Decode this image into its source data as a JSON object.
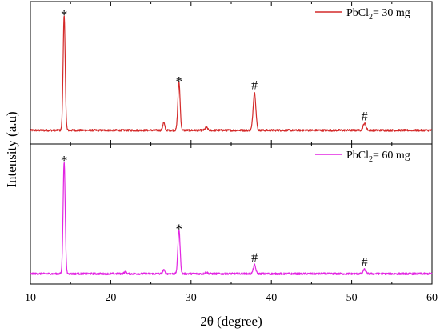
{
  "chart_data": {
    "type": "line",
    "xlabel": "2θ (degree)",
    "ylabel": "Intensity (a.u)",
    "xlim": [
      10,
      60
    ],
    "x_ticks": [
      "10",
      "20",
      "30",
      "40",
      "50",
      "60"
    ],
    "grid": false,
    "layout": "two vertically stacked panels sharing the x axis",
    "panels": [
      {
        "series": [
          {
            "name": "PbCl2= 30 mg",
            "legend": {
              "main": "PbCl",
              "sub": "2",
              "rest": "= 30 mg"
            },
            "color": "#d42a2a",
            "baseline": 0.05,
            "peaks": [
              {
                "x": 14.2,
                "height": 1.0,
                "width": 0.13
              },
              {
                "x": 26.6,
                "height": 0.07,
                "width": 0.12
              },
              {
                "x": 28.5,
                "height": 0.42,
                "width": 0.14
              },
              {
                "x": 31.9,
                "height": 0.025,
                "width": 0.15
              },
              {
                "x": 37.9,
                "height": 0.33,
                "width": 0.17
              },
              {
                "x": 51.6,
                "height": 0.06,
                "width": 0.18
              }
            ],
            "ylim": [
              0,
              1.05
            ]
          }
        ],
        "annotations": [
          {
            "x": 14.2,
            "text": "*"
          },
          {
            "x": 28.5,
            "text": "*"
          },
          {
            "x": 37.9,
            "text": "#"
          },
          {
            "x": 51.6,
            "text": "#"
          }
        ]
      },
      {
        "series": [
          {
            "name": "PbCl2= 60 mg",
            "legend": {
              "main": "PbCl",
              "sub": "2",
              "rest": "= 60 mg"
            },
            "color": "#e226e2",
            "baseline": 0.02,
            "peaks": [
              {
                "x": 14.2,
                "height": 1.0,
                "width": 0.13
              },
              {
                "x": 21.8,
                "height": 0.015,
                "width": 0.15
              },
              {
                "x": 26.6,
                "height": 0.035,
                "width": 0.12
              },
              {
                "x": 28.5,
                "height": 0.39,
                "width": 0.14
              },
              {
                "x": 31.9,
                "height": 0.015,
                "width": 0.15
              },
              {
                "x": 37.9,
                "height": 0.08,
                "width": 0.15
              },
              {
                "x": 51.6,
                "height": 0.04,
                "width": 0.16
              }
            ],
            "ylim": [
              0,
              1.05
            ]
          }
        ],
        "annotations": [
          {
            "x": 14.2,
            "text": "*"
          },
          {
            "x": 28.5,
            "text": "*"
          },
          {
            "x": 37.9,
            "text": "#"
          },
          {
            "x": 51.6,
            "text": "#"
          }
        ]
      }
    ],
    "legend_placement": "top-right"
  }
}
